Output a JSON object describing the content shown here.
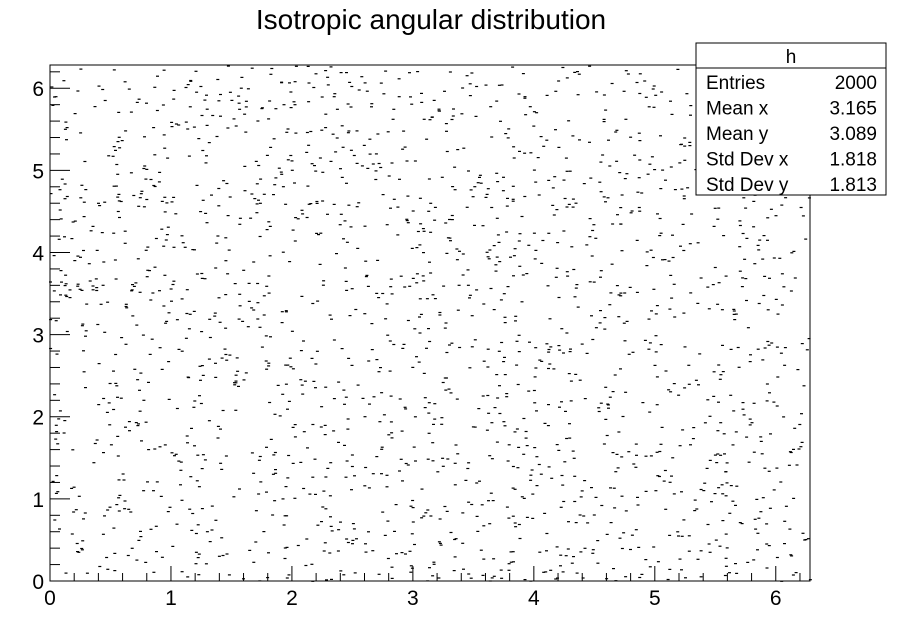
{
  "chart_data": {
    "type": "scatter",
    "title": "Isotropic angular distribution",
    "xlabel": "",
    "ylabel": "",
    "xlim": [
      0,
      6.283
    ],
    "ylim": [
      0,
      6.283
    ],
    "grid": false,
    "x_ticks": [
      "0",
      "1",
      "2",
      "3",
      "4",
      "5",
      "6"
    ],
    "y_ticks": [
      "0",
      "1",
      "2",
      "3",
      "4",
      "5",
      "6"
    ],
    "point_count": 2000,
    "points_description_random_uniform_seed": 12345,
    "stats_box": {
      "name": "h",
      "rows": [
        {
          "label": "Entries",
          "value": "2000"
        },
        {
          "label": "Mean x",
          "value": "3.165"
        },
        {
          "label": "Mean y",
          "value": "3.089"
        },
        {
          "label": "Std Dev x",
          "value": "1.818"
        },
        {
          "label": "Std Dev y",
          "value": "1.813"
        }
      ],
      "position": "top-right"
    }
  }
}
